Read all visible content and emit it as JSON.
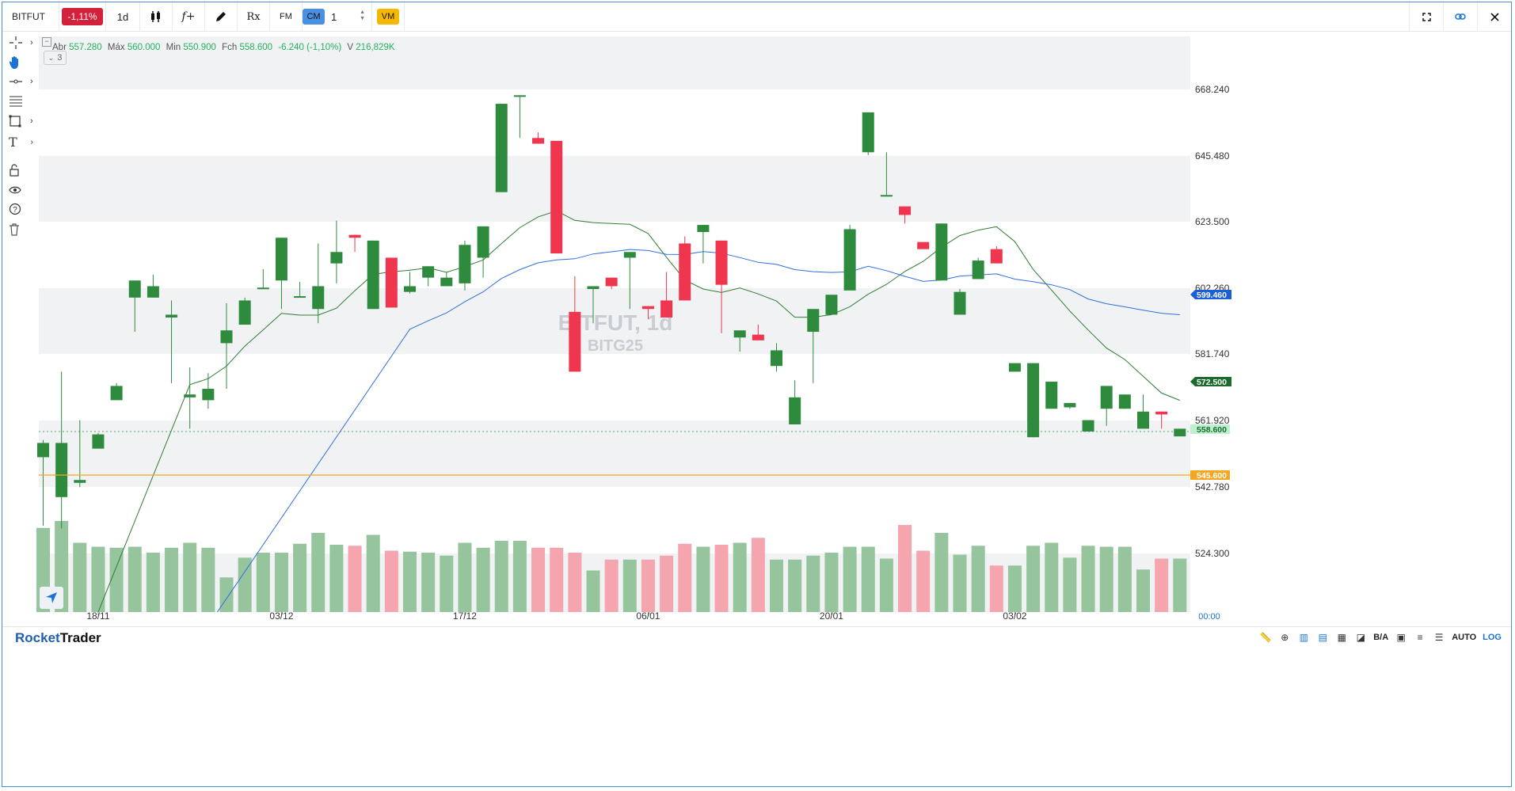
{
  "app": {
    "brand_a": "Rocket",
    "brand_b": "Trader"
  },
  "toolbar": {
    "symbol": "BITFUT",
    "change_badge": "-1,11%",
    "interval": "1d",
    "candle_icon": "candlestick-icon",
    "function_label": "f+",
    "draw_icon": "pencil-icon",
    "rx_label": "Rx",
    "fm_label": "FM",
    "cm_label": "CM",
    "stepper_value": "1",
    "vm_label": "VM",
    "right_icons": [
      "fullscreen-icon",
      "link-icon",
      "close-icon"
    ]
  },
  "sidebar": {
    "tools": [
      "crosshair-icon",
      "hand-icon",
      "line-tool-icon",
      "fibonacci-icon",
      "rectangle-icon",
      "text-tool-icon",
      "lock-icon",
      "eye-icon",
      "help-icon",
      "trash-icon"
    ]
  },
  "ohlc": {
    "open_label": "Abr",
    "open": "557.280",
    "high_label": "Máx",
    "high": "560.000",
    "low_label": "Min",
    "low": "550.900",
    "close_label": "Fch",
    "close": "558.600",
    "change": "-6.240",
    "change_pct": "(-1,10%)",
    "volume_label": "V",
    "volume": "216,829K"
  },
  "indicator_count": "3",
  "watermark": {
    "title": "BITFUT, 1d",
    "subtitle": "BITG25"
  },
  "colors": {
    "up": "#2e8b3e",
    "down": "#f0354f",
    "sma_short": "#2f7d32",
    "sma_long": "#2f6fe0",
    "price_line": "#f5a623"
  },
  "statusbar": {
    "auto": "AUTO",
    "log": "LOG",
    "ba": "B/A"
  },
  "chart_data": {
    "type": "candlestick",
    "y_ticks": [
      "668.240",
      "645.480",
      "623.500",
      "602.260",
      "581.740",
      "561.920",
      "542.780",
      "524.300"
    ],
    "x_ticks": [
      "18/11",
      "03/12",
      "17/12",
      "06/01",
      "20/01",
      "03/02"
    ],
    "time_label": "00:00",
    "price_labels": {
      "blue": "599.460",
      "green": "572.500",
      "last": "558.600",
      "orange": "545.600"
    },
    "candles": [
      [
        550.0,
        555.0,
        526.0,
        556.0
      ],
      [
        536.0,
        555.0,
        525.0,
        580.0
      ],
      [
        541.0,
        542.0,
        539.5,
        563.0
      ],
      [
        553.0,
        558.0,
        556.0,
        558.5
      ],
      [
        570.0,
        575.0,
        574.0,
        576.0
      ],
      [
        606.0,
        612.0,
        594.0,
        612.0
      ],
      [
        606.0,
        610.0,
        607.0,
        614.0
      ],
      [
        599.0,
        600.0,
        576.0,
        605.0
      ],
      [
        571.0,
        572.0,
        560.0,
        581.5
      ],
      [
        570.0,
        574.0,
        567.0,
        579.5
      ],
      [
        590.0,
        594.5,
        574.0,
        604.0
      ],
      [
        596.5,
        605.0,
        598.0,
        606.0
      ],
      [
        609.0,
        609.5,
        612.0,
        616.0
      ],
      [
        612.0,
        627.0,
        602.0,
        611.0
      ],
      [
        606.0,
        606.5,
        607.0,
        611.5
      ],
      [
        602.0,
        610.0,
        597.0,
        625.0
      ],
      [
        618.0,
        622.0,
        611.0,
        633.0
      ],
      [
        628.0,
        627.0,
        622.0,
        623.0
      ],
      [
        602.0,
        626.0,
        602.0,
        626.0
      ],
      [
        620.0,
        602.5,
        604.0,
        620.0
      ],
      [
        608.0,
        610.0,
        607.5,
        615.0
      ],
      [
        613.0,
        617.0,
        610.0,
        616.0
      ],
      [
        610.0,
        613.0,
        613.5,
        615.0
      ],
      [
        611.0,
        624.5,
        608.5,
        626.0
      ],
      [
        620.0,
        631.0,
        613.0,
        628.0
      ],
      [
        643.0,
        674.0,
        670.0,
        669.0
      ],
      [
        677.0,
        677.0,
        662.0,
        666.0
      ],
      [
        662.0,
        660.0,
        671.0,
        664.0
      ],
      [
        661.0,
        621.5,
        637.0,
        649.0
      ],
      [
        601.0,
        580.0,
        594.0,
        613.5
      ],
      [
        609.0,
        610.0,
        597.0,
        607.5
      ],
      [
        613.0,
        610.0,
        609.0,
        610.0
      ],
      [
        620.0,
        622.0,
        602.0,
        611.0
      ],
      [
        603.0,
        602.0,
        598.5,
        600.0
      ],
      [
        605.0,
        599.0,
        611.0,
        615.0
      ],
      [
        625.0,
        605.0,
        608.0,
        627.5
      ],
      [
        629.0,
        631.5,
        618.0,
        627.0
      ],
      [
        626.0,
        610.5,
        593.5,
        622.0
      ],
      [
        592.0,
        594.5,
        587.0,
        590.0
      ],
      [
        593.0,
        591.0,
        595.0,
        596.5
      ],
      [
        582.0,
        587.5,
        580.0,
        590.0
      ],
      [
        561.5,
        571.0,
        563.0,
        577.0
      ],
      [
        594.0,
        602.0,
        576.0,
        590.0
      ],
      [
        600.0,
        607.0,
        611.0,
        605.0
      ],
      [
        608.5,
        630.0,
        611.0,
        631.5
      ],
      [
        657.0,
        671.0,
        656.0,
        655.0
      ],
      [
        642.0,
        642.0,
        648.0,
        657.0
      ],
      [
        638.0,
        635.0,
        632.0,
        638.0
      ],
      [
        625.5,
        623.0,
        624.5,
        624.5
      ],
      [
        612.0,
        632.0,
        620.0,
        630.0
      ],
      [
        600.0,
        608.0,
        612.0,
        609.0
      ],
      [
        612.5,
        619.0,
        622.0,
        620.0
      ],
      [
        623.0,
        618.0,
        621.5,
        624.0
      ],
      [
        580.0,
        583.0,
        582.0,
        581.0
      ],
      [
        557.0,
        583.0,
        561.0,
        574.0
      ],
      [
        567.0,
        576.5,
        568.0,
        575.5
      ],
      [
        567.5,
        569.0,
        567.0,
        567.0
      ],
      [
        559.0,
        563.0,
        559.0,
        563.0
      ],
      [
        567.0,
        575.0,
        561.0,
        565.0
      ],
      [
        567.0,
        572.0,
        571.0,
        572.0
      ],
      [
        560.0,
        566.0,
        567.0,
        572.0
      ],
      [
        566.0,
        565.0,
        560.0,
        565.0
      ],
      [
        557.3,
        560.0,
        558.6,
        550.9
      ]
    ],
    "volumes": [
      0.85,
      0.92,
      0.7,
      0.66,
      0.65,
      0.66,
      0.6,
      0.65,
      0.7,
      0.65,
      0.35,
      0.55,
      0.6,
      0.6,
      0.69,
      0.8,
      0.68,
      0.67,
      0.78,
      0.62,
      0.61,
      0.6,
      0.57,
      0.7,
      0.65,
      0.72,
      0.72,
      0.65,
      0.65,
      0.6,
      0.42,
      0.53,
      0.53,
      0.53,
      0.57,
      0.69,
      0.66,
      0.68,
      0.7,
      0.75,
      0.53,
      0.53,
      0.57,
      0.6,
      0.66,
      0.66,
      0.54,
      0.88,
      0.62,
      0.8,
      0.58,
      0.67,
      0.47,
      0.47,
      0.67,
      0.7,
      0.55,
      0.67,
      0.66,
      0.66,
      0.43,
      0.54,
      0.54
    ]
  }
}
